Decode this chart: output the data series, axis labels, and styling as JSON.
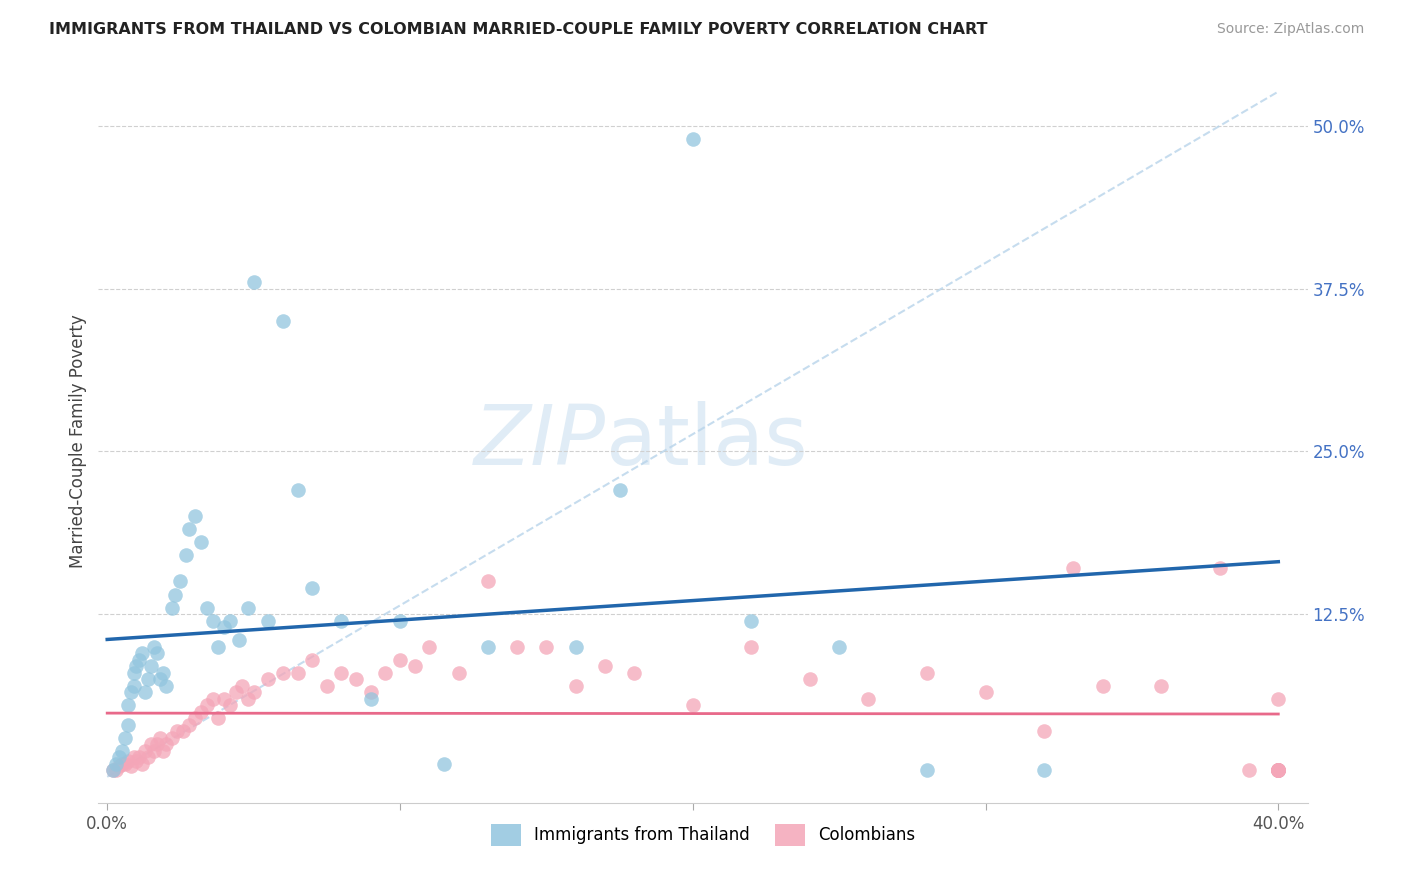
{
  "title": "IMMIGRANTS FROM THAILAND VS COLOMBIAN MARRIED-COUPLE FAMILY POVERTY CORRELATION CHART",
  "source": "Source: ZipAtlas.com",
  "ylabel": "Married-Couple Family Poverty",
  "blue_color": "#92c5de",
  "pink_color": "#f4a6b8",
  "trend_blue": "#2166ac",
  "trend_pink": "#e8698a",
  "dashed_color": "#b8d4ea",
  "watermark_color": "#cce0f0",
  "xlim": [
    0.0,
    0.4
  ],
  "ylim": [
    0.0,
    0.5
  ],
  "yticks": [
    0.0,
    0.125,
    0.25,
    0.375,
    0.5
  ],
  "ytick_labels": [
    "",
    "12.5%",
    "25.0%",
    "37.5%",
    "50.0%"
  ],
  "xticks": [
    0.0,
    0.1,
    0.2,
    0.3,
    0.4
  ],
  "xtick_labels": [
    "0.0%",
    "",
    "",
    "",
    "40.0%"
  ],
  "thailand_x": [
    0.002,
    0.003,
    0.004,
    0.005,
    0.006,
    0.007,
    0.007,
    0.008,
    0.009,
    0.009,
    0.01,
    0.011,
    0.012,
    0.013,
    0.014,
    0.015,
    0.016,
    0.017,
    0.018,
    0.019,
    0.02,
    0.022,
    0.023,
    0.025,
    0.027,
    0.028,
    0.03,
    0.032,
    0.034,
    0.036,
    0.038,
    0.04,
    0.042,
    0.045,
    0.048,
    0.05,
    0.055,
    0.06,
    0.065,
    0.07,
    0.08,
    0.09,
    0.1,
    0.115,
    0.13,
    0.16,
    0.175,
    0.2,
    0.22,
    0.25,
    0.28,
    0.32
  ],
  "thailand_y": [
    0.005,
    0.01,
    0.015,
    0.02,
    0.03,
    0.04,
    0.055,
    0.065,
    0.07,
    0.08,
    0.085,
    0.09,
    0.095,
    0.065,
    0.075,
    0.085,
    0.1,
    0.095,
    0.075,
    0.08,
    0.07,
    0.13,
    0.14,
    0.15,
    0.17,
    0.19,
    0.2,
    0.18,
    0.13,
    0.12,
    0.1,
    0.115,
    0.12,
    0.105,
    0.13,
    0.38,
    0.12,
    0.35,
    0.22,
    0.145,
    0.12,
    0.06,
    0.12,
    0.01,
    0.1,
    0.1,
    0.22,
    0.49,
    0.12,
    0.1,
    0.005,
    0.005
  ],
  "colombian_x": [
    0.002,
    0.003,
    0.004,
    0.005,
    0.006,
    0.007,
    0.008,
    0.009,
    0.01,
    0.011,
    0.012,
    0.013,
    0.014,
    0.015,
    0.016,
    0.017,
    0.018,
    0.019,
    0.02,
    0.022,
    0.024,
    0.026,
    0.028,
    0.03,
    0.032,
    0.034,
    0.036,
    0.038,
    0.04,
    0.042,
    0.044,
    0.046,
    0.048,
    0.05,
    0.055,
    0.06,
    0.065,
    0.07,
    0.075,
    0.08,
    0.085,
    0.09,
    0.095,
    0.1,
    0.105,
    0.11,
    0.12,
    0.13,
    0.14,
    0.15,
    0.16,
    0.17,
    0.18,
    0.2,
    0.22,
    0.24,
    0.26,
    0.28,
    0.3,
    0.32,
    0.33,
    0.34,
    0.36,
    0.38,
    0.39,
    0.4,
    0.4,
    0.4,
    0.4,
    0.4,
    0.4,
    0.4,
    0.4,
    0.4,
    0.4,
    0.4,
    0.4
  ],
  "colombian_y": [
    0.005,
    0.005,
    0.008,
    0.01,
    0.01,
    0.012,
    0.008,
    0.015,
    0.012,
    0.015,
    0.01,
    0.02,
    0.015,
    0.025,
    0.02,
    0.025,
    0.03,
    0.02,
    0.025,
    0.03,
    0.035,
    0.035,
    0.04,
    0.045,
    0.05,
    0.055,
    0.06,
    0.045,
    0.06,
    0.055,
    0.065,
    0.07,
    0.06,
    0.065,
    0.075,
    0.08,
    0.08,
    0.09,
    0.07,
    0.08,
    0.075,
    0.065,
    0.08,
    0.09,
    0.085,
    0.1,
    0.08,
    0.15,
    0.1,
    0.1,
    0.07,
    0.085,
    0.08,
    0.055,
    0.1,
    0.075,
    0.06,
    0.08,
    0.065,
    0.035,
    0.16,
    0.07,
    0.07,
    0.16,
    0.005,
    0.06,
    0.005,
    0.005,
    0.005,
    0.005,
    0.005,
    0.005,
    0.005,
    0.005,
    0.005,
    0.005,
    0.005
  ]
}
